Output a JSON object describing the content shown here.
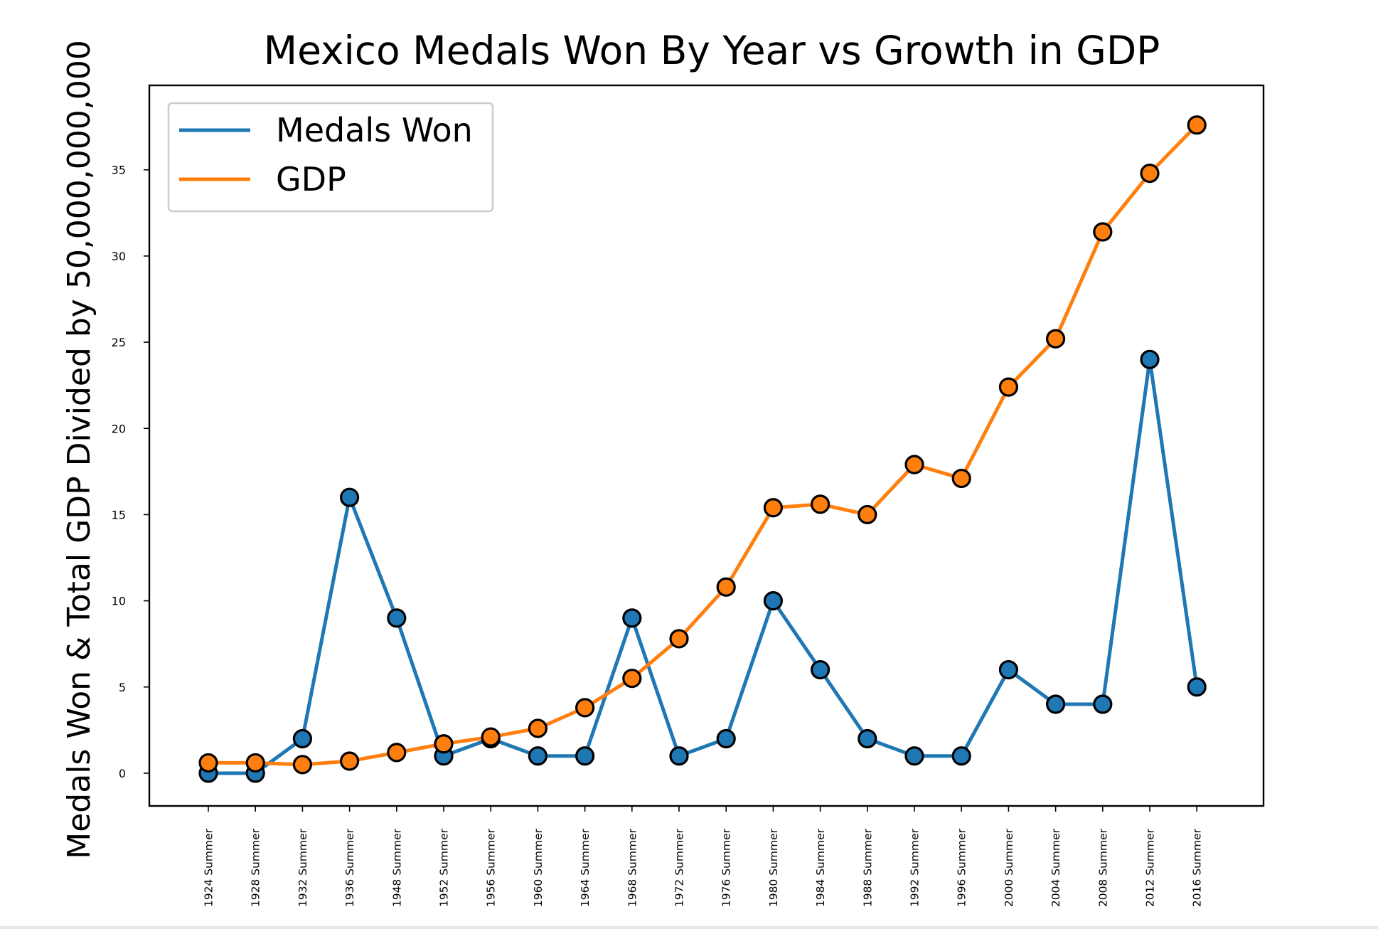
{
  "chart_data": {
    "type": "line",
    "title": "Mexico Medals Won By Year vs Growth in GDP",
    "xlabel": "",
    "ylabel": "Medals Won & Total GDP Divided by 50,000,000,000",
    "categories": [
      "1924 Summer",
      "1928 Summer",
      "1932 Summer",
      "1936 Summer",
      "1948 Summer",
      "1952 Summer",
      "1956 Summer",
      "1960 Summer",
      "1964 Summer",
      "1968 Summer",
      "1972 Summer",
      "1976 Summer",
      "1980 Summer",
      "1984 Summer",
      "1988 Summer",
      "1992 Summer",
      "1996 Summer",
      "2000 Summer",
      "2004 Summer",
      "2008 Summer",
      "2012 Summer",
      "2016 Summer"
    ],
    "yticks": [
      0,
      5,
      10,
      15,
      20,
      25,
      30,
      35
    ],
    "ylim": [
      -1.9,
      39.9
    ],
    "grid": false,
    "legend_position": "top-left",
    "series": [
      {
        "name": "Medals Won",
        "color": "#1f77b4",
        "values": [
          0,
          0,
          2,
          16,
          9,
          1,
          2,
          1,
          1,
          9,
          1,
          2,
          10,
          6,
          2,
          1,
          1,
          6,
          4,
          4,
          24,
          5
        ]
      },
      {
        "name": "GDP",
        "color": "#ff7f0e",
        "values": [
          0.6,
          0.6,
          0.5,
          0.7,
          1.2,
          1.7,
          2.1,
          2.6,
          3.8,
          5.5,
          7.8,
          10.8,
          15.4,
          15.6,
          15.0,
          17.9,
          17.1,
          22.4,
          25.2,
          31.4,
          34.8,
          37.6
        ]
      }
    ]
  }
}
